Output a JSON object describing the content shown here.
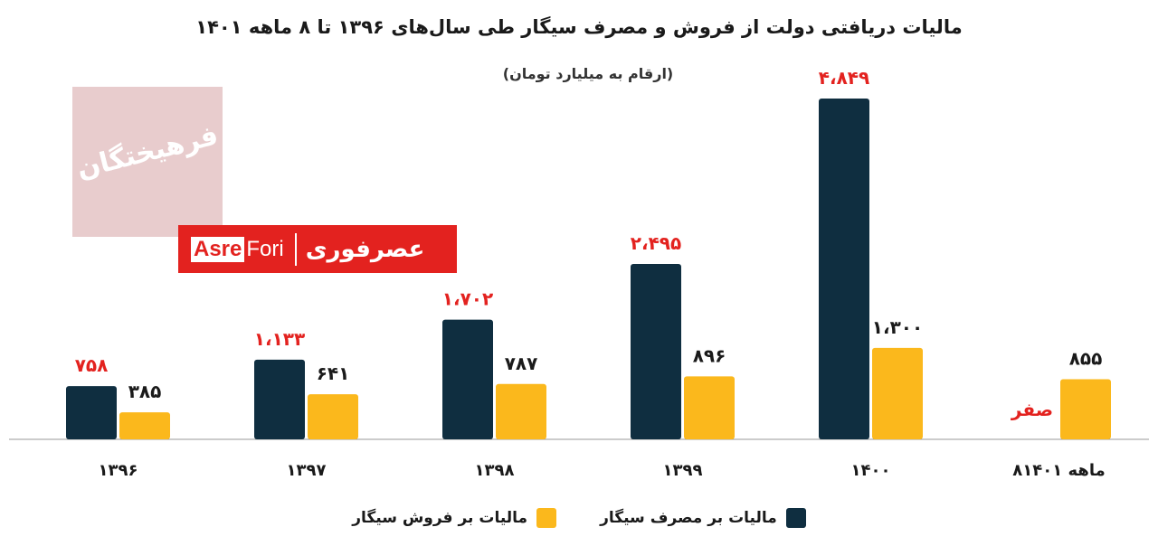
{
  "header": {
    "title": "مالیات دریافتی دولت از فروش و مصرف سیگار طی سال‌های ۱۳۹۶ تا ۸ ماهه ۱۴۰۱",
    "subtitle": "(ارقام به میلیارد تومان)"
  },
  "watermark": {
    "text": "فرهیختگان"
  },
  "logo": {
    "part1": "Asre",
    "part2": "Fori",
    "fa": "عصرفوری"
  },
  "colors": {
    "consumption": "#0f2e40",
    "sales": "#fbb81c",
    "highlight": "#e3221f",
    "axis": "#9a9a9a"
  },
  "chart_data": {
    "type": "bar",
    "categories": [
      "۱۳۹۶",
      "۱۳۹۷",
      "۱۳۹۸",
      "۱۳۹۹",
      "۱۴۰۰",
      "۸ماهه ۱۴۰۱"
    ],
    "series": [
      {
        "name": "مالیات بر مصرف سیگار",
        "values": [
          758,
          1133,
          1702,
          2495,
          4849,
          0
        ],
        "labels": [
          "۷۵۸",
          "۱،۱۳۳",
          "۱،۷۰۲",
          "۲،۴۹۵",
          "۴،۸۴۹",
          "صفر"
        ]
      },
      {
        "name": "مالیات بر فروش سیگار",
        "values": [
          385,
          641,
          787,
          896,
          1300,
          855
        ],
        "labels": [
          "۳۸۵",
          "۶۴۱",
          "۷۸۷",
          "۸۹۶",
          "۱،۳۰۰",
          "۸۵۵"
        ]
      }
    ],
    "legend_position": "bottom",
    "grid": false
  }
}
